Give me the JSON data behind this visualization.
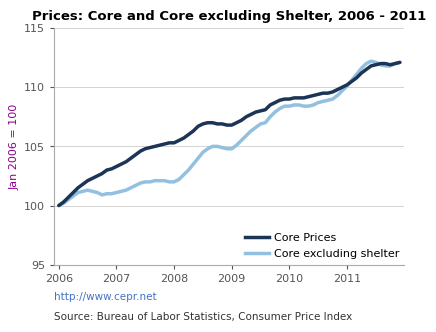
{
  "title": "Prices: Core and Core excluding Shelter, 2006 - 2011",
  "ylabel": "Jan 2006 = 100",
  "ylim": [
    95,
    115
  ],
  "yticks": [
    95,
    100,
    105,
    110,
    115
  ],
  "url_text": "http://www.cepr.net",
  "source_text": "Source: Bureau of Labor Statistics, Consumer Price Index",
  "legend_labels": [
    "Core Prices",
    "Core excluding shelter"
  ],
  "core_color": "#1c3557",
  "shelter_color": "#92c0e0",
  "core_linewidth": 2.5,
  "shelter_linewidth": 2.5,
  "core_prices": [
    100.0,
    100.3,
    100.7,
    101.1,
    101.5,
    101.8,
    102.1,
    102.3,
    102.5,
    102.7,
    103.0,
    103.1,
    103.3,
    103.5,
    103.7,
    104.0,
    104.3,
    104.6,
    104.8,
    104.9,
    105.0,
    105.1,
    105.2,
    105.3,
    105.3,
    105.5,
    105.7,
    106.0,
    106.3,
    106.7,
    106.9,
    107.0,
    107.0,
    106.9,
    106.9,
    106.8,
    106.8,
    107.0,
    107.2,
    107.5,
    107.7,
    107.9,
    108.0,
    108.1,
    108.5,
    108.7,
    108.9,
    109.0,
    109.0,
    109.1,
    109.1,
    109.1,
    109.2,
    109.3,
    109.4,
    109.5,
    109.5,
    109.6,
    109.8,
    110.0,
    110.2,
    110.5,
    110.8,
    111.2,
    111.5,
    111.8,
    111.9,
    112.0,
    112.0,
    111.9,
    112.0,
    112.1
  ],
  "core_excl_shelter": [
    100.0,
    100.2,
    100.5,
    100.8,
    101.1,
    101.2,
    101.3,
    101.2,
    101.1,
    100.9,
    101.0,
    101.0,
    101.1,
    101.2,
    101.3,
    101.5,
    101.7,
    101.9,
    102.0,
    102.0,
    102.1,
    102.1,
    102.1,
    102.0,
    102.0,
    102.2,
    102.6,
    103.0,
    103.5,
    104.0,
    104.5,
    104.8,
    105.0,
    105.0,
    104.9,
    104.8,
    104.8,
    105.1,
    105.5,
    105.9,
    106.3,
    106.6,
    106.9,
    107.0,
    107.5,
    107.9,
    108.2,
    108.4,
    108.4,
    108.5,
    108.5,
    108.4,
    108.4,
    108.5,
    108.7,
    108.8,
    108.9,
    109.0,
    109.3,
    109.7,
    110.1,
    110.6,
    111.1,
    111.6,
    112.0,
    112.2,
    112.1,
    111.9,
    111.8,
    111.8,
    112.0,
    112.1
  ],
  "n_months": 72,
  "start_year": 2006,
  "title_fontsize": 9.5,
  "tick_fontsize": 8,
  "label_fontsize": 8,
  "legend_fontsize": 8,
  "annotation_fontsize": 7.5,
  "url_color": "#4472c4",
  "source_color": "#333333",
  "ylabel_color": "#8B008B",
  "tick_color": "#555555",
  "grid_color": "#cccccc",
  "spine_color": "#aaaaaa"
}
